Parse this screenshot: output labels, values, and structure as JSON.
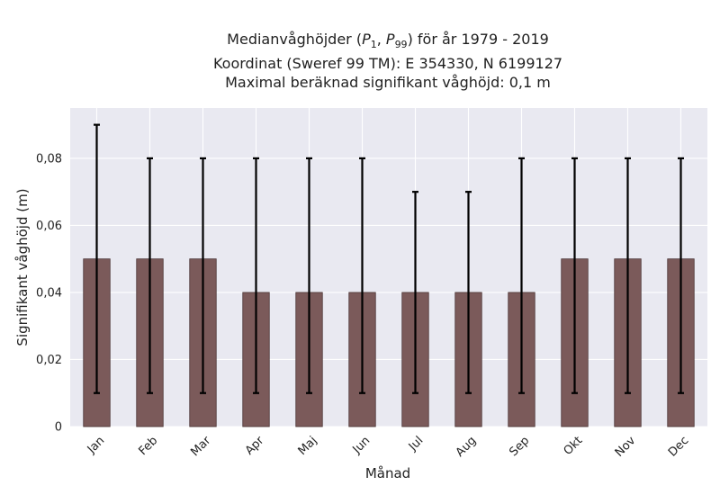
{
  "title": {
    "line1_prefix": "Medianvåghöjder (",
    "p_low_sym": "P",
    "p_low_sub": "1",
    "p_sep": ", ",
    "p_high_sym": "P",
    "p_high_sub": "99",
    "line1_suffix": ") för år 1979 - 2019",
    "line2": "Koordinat (Sweref 99 TM): E 354330, N 6199127",
    "line3": "Maximal beräknad signifikant våghöjd: 0,1 m"
  },
  "chart_data": {
    "type": "bar",
    "xlabel": "Månad",
    "ylabel": "Signifikant våghöjd (m)",
    "ylim": [
      0,
      0.095
    ],
    "yticks": [
      0,
      0.02,
      0.04,
      0.06,
      0.08
    ],
    "ytick_labels": [
      "0",
      "0,02",
      "0,04",
      "0,06",
      "0,08"
    ],
    "categories": [
      "Jan",
      "Feb",
      "Mar",
      "Apr",
      "Maj",
      "Jun",
      "Jul",
      "Aug",
      "Sep",
      "Okt",
      "Nov",
      "Dec"
    ],
    "values": [
      0.05,
      0.05,
      0.05,
      0.04,
      0.04,
      0.04,
      0.04,
      0.04,
      0.04,
      0.05,
      0.05,
      0.05
    ],
    "error_low": [
      0.01,
      0.01,
      0.01,
      0.01,
      0.01,
      0.01,
      0.01,
      0.01,
      0.01,
      0.01,
      0.01,
      0.01
    ],
    "error_high": [
      0.09,
      0.08,
      0.08,
      0.08,
      0.08,
      0.08,
      0.07,
      0.07,
      0.08,
      0.08,
      0.08,
      0.08
    ],
    "grid": true,
    "colors": {
      "bar": "#7b5a5a",
      "bar_edge": "#4a3434",
      "error_bar": "#000000",
      "plot_bg": "#e9e9f1",
      "grid": "#ffffff"
    }
  }
}
